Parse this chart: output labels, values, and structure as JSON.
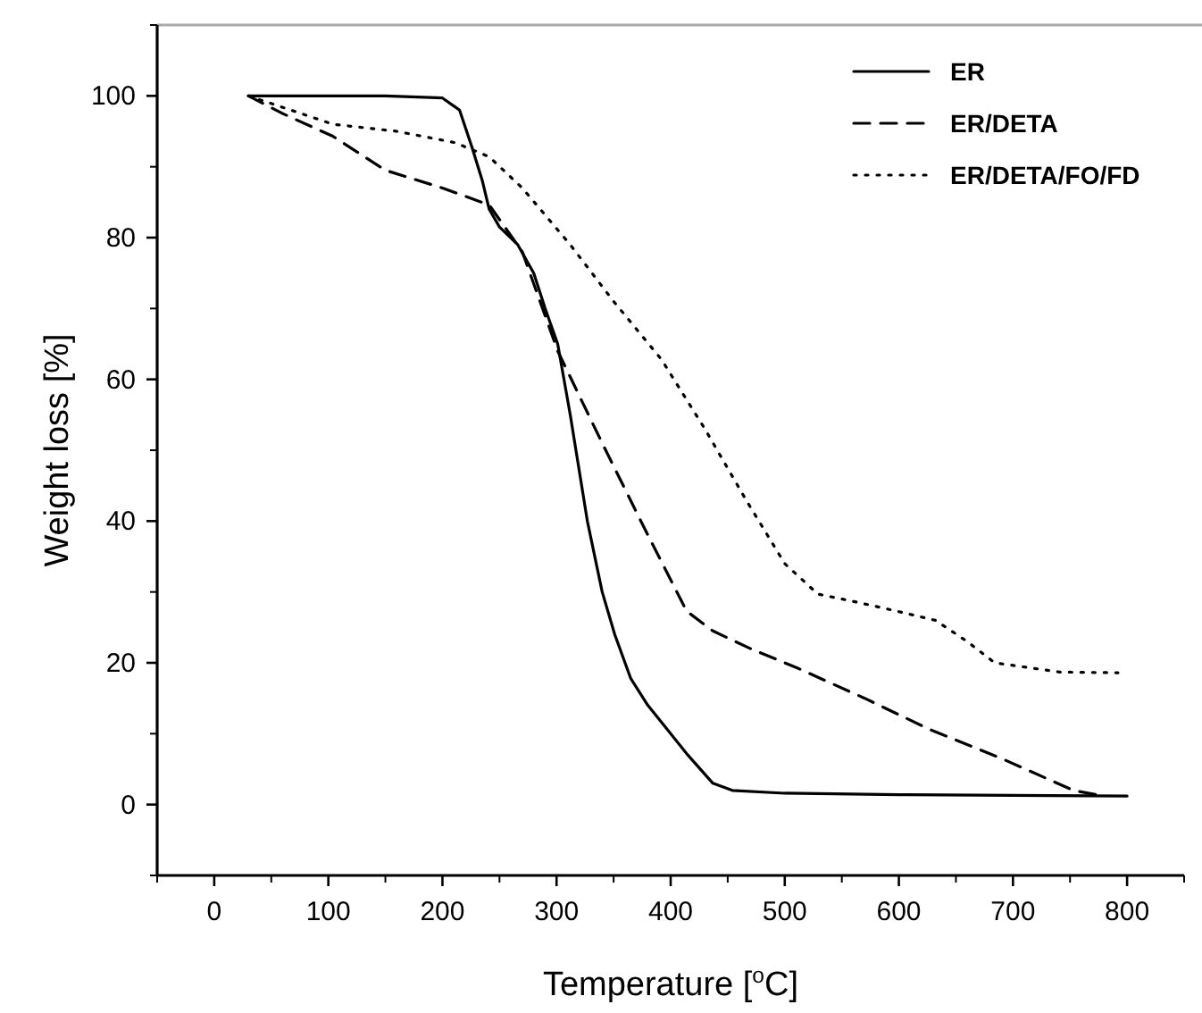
{
  "chart_data": {
    "type": "line",
    "xlabel": "Temperature [$^{o}$C]",
    "ylabel": "Weight loss [%]",
    "xlim": [
      -50,
      850
    ],
    "ylim": [
      -10,
      110
    ],
    "xticks": [
      0,
      100,
      200,
      300,
      400,
      500,
      600,
      700,
      800
    ],
    "yticks": [
      0,
      20,
      40,
      60,
      80,
      100
    ],
    "legend": "top right",
    "grid": false,
    "series": [
      {
        "name": "ER",
        "color": "#000000",
        "line_style": "solid",
        "x": [
          30,
          100,
          150,
          200,
          215,
          226,
          235,
          241,
          250,
          266,
          280,
          290,
          301,
          312,
          327,
          340,
          351,
          365,
          380,
          397,
          415,
          437,
          454,
          500,
          600,
          700,
          800
        ],
        "values": [
          100,
          100,
          100,
          99.7,
          98,
          92.7,
          88,
          84,
          81.5,
          79,
          75,
          70,
          65,
          55,
          40,
          30,
          24,
          17.8,
          14,
          10.6,
          7,
          3,
          2,
          1.6,
          1.4,
          1.3,
          1.2
        ]
      },
      {
        "name": "ER/DETA",
        "color": "#000000",
        "line_style": "dashed",
        "x": [
          30,
          60,
          104,
          150,
          200,
          241,
          270,
          301,
          340,
          377,
          414,
          437,
          470,
          512,
          570,
          627,
          690,
          753,
          780
        ],
        "values": [
          100,
          97.5,
          94.3,
          89.5,
          87,
          84.6,
          78,
          64,
          51,
          39,
          27.3,
          24.5,
          22,
          19.2,
          15,
          10.6,
          6.5,
          2,
          1.2
        ]
      },
      {
        "name": "ER/DETA/FO/FD",
        "color": "#000000",
        "line_style": "dotted",
        "x": [
          30,
          104,
          160,
          211,
          241,
          270,
          312,
          350,
          392,
          430,
          466,
          500,
          529,
          565,
          598,
          632,
          660,
          684,
          741,
          792
        ],
        "values": [
          100,
          96,
          95,
          93.4,
          91.4,
          87,
          79,
          71,
          62.8,
          53,
          43,
          34,
          29.7,
          28.5,
          27.3,
          26,
          23,
          20,
          18.7,
          18.6
        ]
      }
    ]
  }
}
